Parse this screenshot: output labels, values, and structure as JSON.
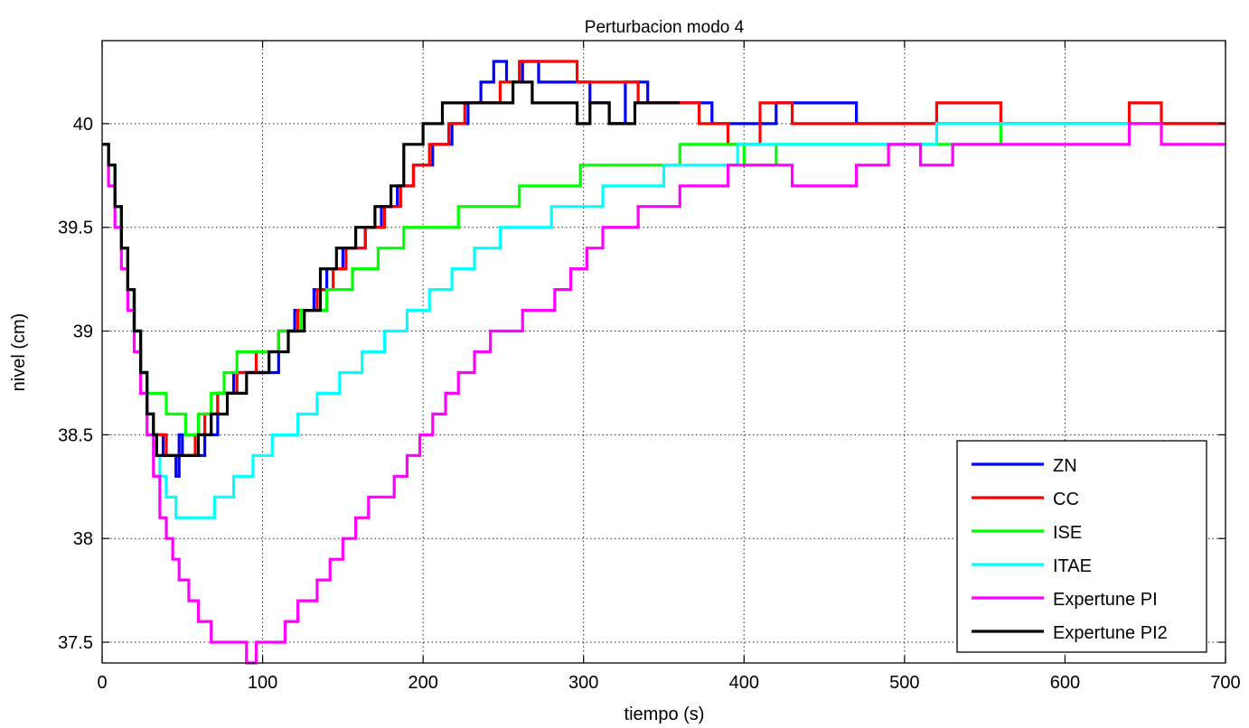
{
  "chart_data": {
    "type": "line",
    "title": "Perturbacion modo 4",
    "xlabel": "tiempo (s)",
    "ylabel": "nivel (cm)",
    "xlim": [
      0,
      700
    ],
    "ylim": [
      37.4,
      40.4
    ],
    "xticks": [
      0,
      100,
      200,
      300,
      400,
      500,
      600,
      700
    ],
    "yticks": [
      37.5,
      38,
      38.5,
      39,
      39.5,
      40
    ],
    "xtick_labels": [
      "0",
      "100",
      "200",
      "300",
      "400",
      "500",
      "600",
      "700"
    ],
    "ytick_labels": [
      "37.5",
      "38",
      "38.5",
      "39",
      "39.5",
      "40"
    ],
    "grid": true,
    "legend_position": "bottom-right",
    "series": [
      {
        "name": "ZN",
        "color": "#0000ff",
        "x": [
          0,
          4,
          8,
          12,
          16,
          20,
          24,
          28,
          32,
          38,
          44,
          46,
          48,
          50,
          64,
          72,
          82,
          94,
          110,
          120,
          132,
          140,
          150,
          164,
          174,
          184,
          194,
          206,
          218,
          228,
          236,
          244,
          252,
          262,
          272,
          282,
          292,
          304,
          316,
          326,
          340,
          360,
          380,
          420,
          470,
          520,
          580,
          640,
          700
        ],
        "y": [
          39.9,
          39.8,
          39.6,
          39.4,
          39.2,
          39.0,
          38.8,
          38.6,
          38.5,
          38.4,
          38.4,
          38.3,
          38.5,
          38.4,
          38.5,
          38.7,
          38.8,
          38.8,
          39.0,
          39.1,
          39.2,
          39.3,
          39.4,
          39.5,
          39.6,
          39.7,
          39.8,
          39.9,
          40.0,
          40.1,
          40.2,
          40.3,
          40.2,
          40.3,
          40.2,
          40.2,
          40.2,
          40.1,
          40.0,
          40.2,
          40.1,
          40.1,
          40.0,
          40.1,
          40.0,
          40.0,
          40.0,
          40.0,
          40.0
        ]
      },
      {
        "name": "CC",
        "color": "#ff0000",
        "x": [
          0,
          4,
          8,
          12,
          16,
          20,
          24,
          28,
          32,
          40,
          50,
          58,
          64,
          72,
          84,
          96,
          110,
          122,
          134,
          144,
          152,
          164,
          176,
          186,
          194,
          204,
          216,
          226,
          236,
          248,
          260,
          270,
          286,
          296,
          312,
          334,
          356,
          372,
          390,
          410,
          430,
          460,
          480,
          520,
          560,
          600,
          640,
          660,
          680,
          700
        ],
        "y": [
          39.9,
          39.8,
          39.6,
          39.4,
          39.2,
          39.0,
          38.8,
          38.6,
          38.5,
          38.4,
          38.4,
          38.5,
          38.6,
          38.7,
          38.8,
          38.9,
          39.0,
          39.1,
          39.2,
          39.3,
          39.4,
          39.5,
          39.6,
          39.7,
          39.8,
          39.9,
          40.0,
          40.1,
          40.1,
          40.2,
          40.3,
          40.3,
          40.3,
          40.2,
          40.2,
          40.1,
          40.1,
          40.0,
          39.9,
          40.1,
          40.0,
          40.0,
          40.0,
          40.1,
          40.0,
          40.0,
          40.1,
          40.0,
          40.0,
          40.0
        ]
      },
      {
        "name": "ISE",
        "color": "#00ff00",
        "x": [
          0,
          4,
          8,
          12,
          16,
          20,
          24,
          28,
          40,
          52,
          60,
          68,
          76,
          84,
          96,
          110,
          124,
          140,
          156,
          172,
          188,
          204,
          222,
          240,
          260,
          280,
          298,
          320,
          340,
          360,
          380,
          400,
          420,
          450,
          480,
          520,
          560,
          600,
          640,
          660
        ],
        "y": [
          39.9,
          39.8,
          39.6,
          39.4,
          39.2,
          39.0,
          38.8,
          38.7,
          38.6,
          38.5,
          38.6,
          38.7,
          38.8,
          38.9,
          38.9,
          39.0,
          39.1,
          39.2,
          39.3,
          39.4,
          39.5,
          39.5,
          39.6,
          39.6,
          39.7,
          39.7,
          39.8,
          39.8,
          39.8,
          39.9,
          39.9,
          39.8,
          39.9,
          39.9,
          39.9,
          39.9,
          40.0,
          40.0,
          40.0,
          40.0
        ]
      },
      {
        "name": "ITAE",
        "color": "#00ffff",
        "x": [
          0,
          4,
          8,
          12,
          16,
          20,
          24,
          28,
          32,
          36,
          40,
          46,
          58,
          70,
          82,
          94,
          106,
          122,
          134,
          148,
          162,
          176,
          190,
          204,
          218,
          232,
          248,
          264,
          280,
          296,
          312,
          330,
          350,
          372,
          396,
          420,
          450,
          480,
          520,
          560,
          600,
          640
        ],
        "y": [
          39.9,
          39.8,
          39.6,
          39.4,
          39.2,
          39.0,
          38.8,
          38.6,
          38.4,
          38.3,
          38.2,
          38.1,
          38.1,
          38.2,
          38.3,
          38.4,
          38.5,
          38.6,
          38.7,
          38.8,
          38.9,
          39.0,
          39.1,
          39.2,
          39.3,
          39.4,
          39.5,
          39.5,
          39.6,
          39.6,
          39.7,
          39.7,
          39.8,
          39.8,
          39.9,
          39.9,
          39.9,
          39.9,
          40.0,
          40.0,
          40.0,
          40.0
        ]
      },
      {
        "name": "Expertune PI",
        "color": "#ff00ff",
        "x": [
          0,
          4,
          8,
          12,
          16,
          20,
          24,
          28,
          32,
          36,
          40,
          44,
          48,
          54,
          60,
          68,
          80,
          90,
          96,
          106,
          114,
          122,
          128,
          134,
          142,
          150,
          158,
          166,
          174,
          182,
          190,
          198,
          206,
          214,
          222,
          232,
          242,
          252,
          262,
          272,
          282,
          292,
          302,
          312,
          322,
          334,
          346,
          360,
          374,
          390,
          410,
          430,
          450,
          470,
          490,
          510,
          530,
          560,
          600,
          640,
          660,
          700
        ],
        "y": [
          39.9,
          39.7,
          39.5,
          39.3,
          39.1,
          38.9,
          38.7,
          38.5,
          38.3,
          38.1,
          38.0,
          37.9,
          37.8,
          37.7,
          37.6,
          37.5,
          37.5,
          37.4,
          37.5,
          37.5,
          37.6,
          37.7,
          37.7,
          37.8,
          37.9,
          38.0,
          38.1,
          38.2,
          38.2,
          38.3,
          38.4,
          38.5,
          38.6,
          38.7,
          38.8,
          38.9,
          39.0,
          39.0,
          39.1,
          39.1,
          39.2,
          39.3,
          39.4,
          39.5,
          39.5,
          39.6,
          39.6,
          39.7,
          39.7,
          39.8,
          39.8,
          39.7,
          39.7,
          39.8,
          39.9,
          39.8,
          39.9,
          39.9,
          39.9,
          40.0,
          39.9,
          39.9
        ]
      },
      {
        "name": "Expertune PI2",
        "color": "#000000",
        "x": [
          0,
          4,
          8,
          12,
          16,
          20,
          24,
          28,
          32,
          34,
          42,
          54,
          60,
          68,
          78,
          90,
          104,
          116,
          126,
          136,
          146,
          158,
          170,
          180,
          188,
          200,
          212,
          222,
          232,
          244,
          256,
          268,
          282,
          296,
          304,
          316,
          332,
          344,
          360
        ],
        "y": [
          39.9,
          39.8,
          39.6,
          39.4,
          39.2,
          39.0,
          38.8,
          38.6,
          38.5,
          38.4,
          38.4,
          38.4,
          38.5,
          38.6,
          38.7,
          38.8,
          38.9,
          39.0,
          39.1,
          39.3,
          39.4,
          39.5,
          39.6,
          39.7,
          39.9,
          40.0,
          40.1,
          40.1,
          40.1,
          40.1,
          40.2,
          40.1,
          40.1,
          40.0,
          40.1,
          40.0,
          40.1,
          40.1,
          40.1
        ]
      }
    ]
  }
}
